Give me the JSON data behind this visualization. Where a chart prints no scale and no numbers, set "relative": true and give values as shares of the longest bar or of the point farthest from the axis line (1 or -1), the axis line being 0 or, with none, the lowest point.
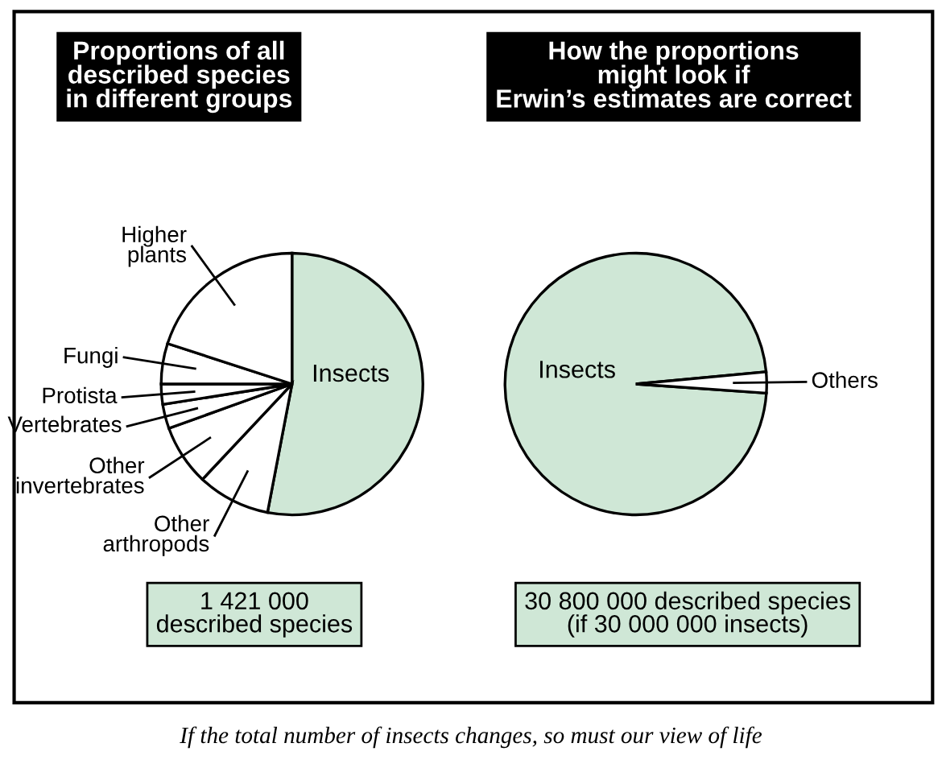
{
  "chart_data": [
    {
      "type": "pie",
      "title": "Proportions of all\ndescribed species\nin different groups",
      "relative": true,
      "categories": [
        "Insects",
        "Other\narthropods",
        "Other\ninvertebrates",
        "Vertebrates",
        "Protista",
        "Fungi",
        "Higher\nplants"
      ],
      "values": [
        53,
        9,
        7.5,
        3,
        2.5,
        5,
        20
      ],
      "colors": [
        "#cfe7d6",
        "#ffffff",
        "#ffffff",
        "#ffffff",
        "#ffffff",
        "#ffffff",
        "#ffffff"
      ],
      "annotations": [
        "1 421 000\ndescribed species"
      ]
    },
    {
      "type": "pie",
      "title": "How the proportions\nmight look if\nErwin’s estimates are correct",
      "relative": true,
      "categories": [
        "Insects",
        "Others"
      ],
      "values": [
        97.4,
        2.6
      ],
      "colors": [
        "#cfe7d6",
        "#ffffff"
      ],
      "annotations": [
        "30 800 000 described species\n(if 30 000 000 insects)",
        "If the total number of insects changes, so must our view of life"
      ]
    }
  ]
}
